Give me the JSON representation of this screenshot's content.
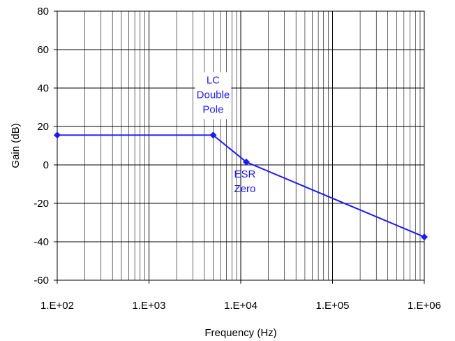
{
  "chart_data": {
    "type": "line",
    "xlabel": "Frequency (Hz)",
    "ylabel": "Gain (dB)",
    "x_scale": "log",
    "xlim": [
      100,
      1000000
    ],
    "ylim": [
      -60,
      80
    ],
    "x_ticks": [
      100,
      1000,
      10000,
      100000,
      1000000
    ],
    "x_tick_labels": [
      "1.E+02",
      "1.E+03",
      "1.E+04",
      "1.E+05",
      "1.E+06"
    ],
    "y_ticks": [
      -60,
      -40,
      -20,
      0,
      20,
      40,
      60,
      80
    ],
    "y_tick_labels": [
      "-60",
      "-40",
      "-20",
      "0",
      "20",
      "40",
      "60",
      "80"
    ],
    "grid": true,
    "series": [
      {
        "color": "#1a1aff",
        "marker": "diamond",
        "x": [
          100,
          5000,
          11500,
          1000000
        ],
        "y": [
          15.5,
          15.5,
          1.5,
          -37.5
        ]
      }
    ],
    "annotations": [
      {
        "lines": [
          "LC",
          "Double",
          "Pole"
        ],
        "x": 5000,
        "y": 15.5
      },
      {
        "lines": [
          "ESR",
          "Zero"
        ],
        "x": 11500,
        "y": 1.5
      }
    ]
  }
}
